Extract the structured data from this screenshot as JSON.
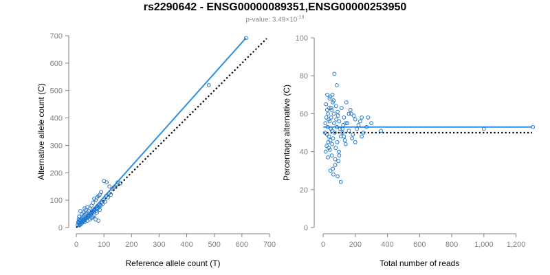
{
  "header": {
    "title": "rs2290642 - ENSG00000089351,ENSG00000253950",
    "pvalue_prefix": "p-value: 3.49×10",
    "pvalue_exp": "-19"
  },
  "colors": {
    "points": "#1f78d1",
    "fit_line": "#2e8fe0",
    "reference_line": "#000000",
    "axis": "#7f7f7f"
  },
  "chart_data": [
    {
      "type": "scatter",
      "title": "",
      "xlabel": "Reference allele count (T)",
      "ylabel": "Alternative allele count (C)",
      "xlim": [
        0,
        700
      ],
      "ylim": [
        0,
        700
      ],
      "xticks": [
        0,
        100,
        200,
        300,
        400,
        500,
        600,
        700
      ],
      "xtick_labels": [
        "0",
        "100",
        "200",
        "300",
        "400",
        "500",
        "600",
        "700"
      ],
      "yticks": [
        0,
        100,
        200,
        300,
        400,
        500,
        600,
        700
      ],
      "ytick_labels": [
        "0",
        "100",
        "200",
        "300",
        "400",
        "500",
        "600",
        "700"
      ],
      "grid": false,
      "fit_line": {
        "x": [
          10,
          615
        ],
        "y": [
          10,
          692
        ]
      },
      "reference_line": {
        "x": [
          0,
          690
        ],
        "y": [
          0,
          690
        ],
        "style": "dotted"
      },
      "points": [
        [
          615,
          692
        ],
        [
          480,
          520
        ],
        [
          150,
          165
        ],
        [
          140,
          150
        ],
        [
          120,
          150
        ],
        [
          110,
          165
        ],
        [
          100,
          170
        ],
        [
          130,
          140
        ],
        [
          90,
          130
        ],
        [
          85,
          120
        ],
        [
          80,
          115
        ],
        [
          75,
          110
        ],
        [
          70,
          100
        ],
        [
          65,
          105
        ],
        [
          60,
          90
        ],
        [
          55,
          80
        ],
        [
          50,
          70
        ],
        [
          45,
          60
        ],
        [
          40,
          55
        ],
        [
          35,
          50
        ],
        [
          30,
          45
        ],
        [
          25,
          40
        ],
        [
          20,
          35
        ],
        [
          18,
          30
        ],
        [
          15,
          28
        ],
        [
          12,
          25
        ],
        [
          10,
          20
        ],
        [
          8,
          15
        ],
        [
          14,
          10
        ],
        [
          22,
          20
        ],
        [
          28,
          25
        ],
        [
          33,
          30
        ],
        [
          38,
          35
        ],
        [
          42,
          40
        ],
        [
          48,
          45
        ],
        [
          52,
          50
        ],
        [
          58,
          55
        ],
        [
          62,
          60
        ],
        [
          68,
          65
        ],
        [
          72,
          60
        ],
        [
          78,
          70
        ],
        [
          82,
          75
        ],
        [
          88,
          80
        ],
        [
          95,
          85
        ],
        [
          105,
          95
        ],
        [
          115,
          110
        ],
        [
          125,
          120
        ],
        [
          60,
          40
        ],
        [
          70,
          30
        ],
        [
          80,
          25
        ],
        [
          50,
          30
        ],
        [
          40,
          25
        ],
        [
          30,
          20
        ],
        [
          20,
          15
        ],
        [
          15,
          60
        ],
        [
          25,
          55
        ],
        [
          35,
          65
        ],
        [
          45,
          40
        ],
        [
          55,
          35
        ],
        [
          65,
          45
        ],
        [
          75,
          55
        ],
        [
          85,
          65
        ],
        [
          40,
          75
        ],
        [
          30,
          70
        ],
        [
          20,
          50
        ],
        [
          10,
          40
        ],
        [
          12,
          12
        ],
        [
          16,
          18
        ],
        [
          24,
          22
        ],
        [
          26,
          30
        ],
        [
          32,
          28
        ],
        [
          36,
          38
        ],
        [
          44,
          42
        ],
        [
          46,
          48
        ],
        [
          54,
          52
        ],
        [
          56,
          58
        ],
        [
          64,
          62
        ],
        [
          66,
          68
        ],
        [
          74,
          72
        ],
        [
          76,
          78
        ],
        [
          84,
          82
        ],
        [
          92,
          90
        ],
        [
          98,
          100
        ],
        [
          108,
          115
        ],
        [
          118,
          125
        ],
        [
          135,
          145
        ],
        [
          145,
          155
        ],
        [
          160,
          162
        ],
        [
          5,
          10
        ],
        [
          7,
          20
        ],
        [
          9,
          30
        ],
        [
          11,
          8
        ]
      ]
    },
    {
      "type": "scatter",
      "title": "",
      "xlabel": "Total number of reads",
      "ylabel": "Percentage alternative (C)",
      "xlim": [
        0,
        1300
      ],
      "ylim": [
        0,
        100
      ],
      "xticks": [
        0,
        200,
        400,
        600,
        800,
        1000,
        1200
      ],
      "xtick_labels": [
        "0",
        "200",
        "400",
        "600",
        "800",
        "1,000",
        "1,200"
      ],
      "yticks": [
        0,
        20,
        40,
        60,
        80,
        100
      ],
      "ytick_labels": [
        "0",
        "20",
        "40",
        "60",
        "80",
        "100"
      ],
      "grid": false,
      "fit_line": {
        "x": [
          0,
          1300
        ],
        "y": [
          53,
          53
        ]
      },
      "reference_line": {
        "x": [
          0,
          1300
        ],
        "y": [
          50,
          50
        ],
        "style": "dotted"
      },
      "points": [
        [
          1305,
          53
        ],
        [
          1000,
          52
        ],
        [
          360,
          51
        ],
        [
          300,
          55
        ],
        [
          280,
          58
        ],
        [
          270,
          53
        ],
        [
          250,
          50
        ],
        [
          240,
          48
        ],
        [
          230,
          56
        ],
        [
          220,
          54
        ],
        [
          210,
          52
        ],
        [
          200,
          57
        ],
        [
          190,
          59
        ],
        [
          185,
          49
        ],
        [
          180,
          47
        ],
        [
          175,
          60
        ],
        [
          170,
          62
        ],
        [
          160,
          51
        ],
        [
          150,
          55
        ],
        [
          145,
          66
        ],
        [
          140,
          44
        ],
        [
          135,
          46
        ],
        [
          130,
          58
        ],
        [
          125,
          54
        ],
        [
          120,
          50
        ],
        [
          115,
          63
        ],
        [
          110,
          48
        ],
        [
          105,
          52
        ],
        [
          100,
          56
        ],
        [
          98,
          40
        ],
        [
          95,
          35
        ],
        [
          92,
          59
        ],
        [
          90,
          61
        ],
        [
          88,
          45
        ],
        [
          85,
          53
        ],
        [
          82,
          57
        ],
        [
          80,
          64
        ],
        [
          78,
          42
        ],
        [
          75,
          36
        ],
        [
          72,
          50
        ],
        [
          70,
          81
        ],
        [
          68,
          55
        ],
        [
          66,
          60
        ],
        [
          64,
          28
        ],
        [
          62,
          47
        ],
        [
          60,
          66
        ],
        [
          58,
          70
        ],
        [
          56,
          44
        ],
        [
          54,
          38
        ],
        [
          52,
          62
        ],
        [
          50,
          58
        ],
        [
          48,
          52
        ],
        [
          46,
          30
        ],
        [
          44,
          69
        ],
        [
          42,
          41
        ],
        [
          40,
          56
        ],
        [
          38,
          63
        ],
        [
          36,
          48
        ],
        [
          34,
          57
        ],
        [
          32,
          45
        ],
        [
          30,
          60
        ],
        [
          28,
          53
        ],
        [
          26,
          70
        ],
        [
          24,
          49
        ],
        [
          22,
          43
        ],
        [
          20,
          58
        ],
        [
          18,
          65
        ],
        [
          16,
          40
        ],
        [
          14,
          55
        ],
        [
          12,
          50
        ],
        [
          110,
          24
        ],
        [
          90,
          27
        ],
        [
          75,
          33
        ],
        [
          65,
          67
        ],
        [
          55,
          51
        ],
        [
          45,
          46
        ],
        [
          35,
          42
        ],
        [
          25,
          62
        ],
        [
          85,
          75
        ],
        [
          100,
          38
        ],
        [
          130,
          48
        ],
        [
          160,
          60
        ],
        [
          200,
          45
        ],
        [
          240,
          58
        ],
        [
          120,
          52
        ],
        [
          140,
          55
        ],
        [
          60,
          31
        ],
        [
          50,
          63
        ],
        [
          40,
          68
        ],
        [
          30,
          37
        ]
      ]
    }
  ]
}
